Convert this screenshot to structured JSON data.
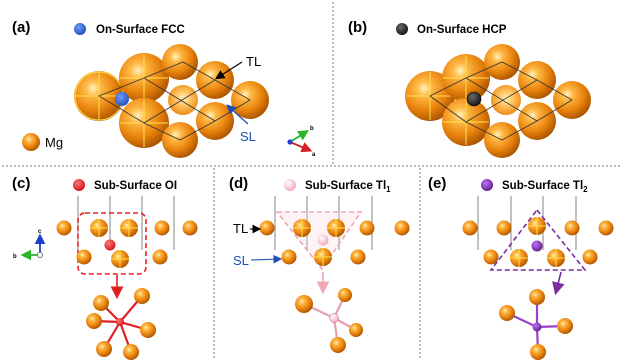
{
  "panels": {
    "a": {
      "label": "(a)",
      "title": "On-Surface FCC",
      "marker_color": "#1f4fb5",
      "tl": "TL",
      "sl": "SL",
      "legend": "Mg",
      "axis_b": "b",
      "axis_a": "a"
    },
    "b": {
      "label": "(b)",
      "title": "On-Surface HCP",
      "marker_color": "#2b2b2b"
    },
    "c": {
      "label": "(c)",
      "title": "Sub-Surface OI",
      "marker_color": "#e8141a",
      "axis_c": "c",
      "axis_b": "b"
    },
    "d": {
      "label": "(d)",
      "title_main": "Sub-Surface Tl",
      "title_sub": "1",
      "marker_color": "#f5b8c4",
      "tl": "TL",
      "sl": "SL"
    },
    "e": {
      "label": "(e)",
      "title_main": "Sub-Surface Tl",
      "title_sub": "2",
      "marker_color": "#7a2ca0"
    }
  },
  "colors": {
    "mg": "#e8830c",
    "sl_arrow": "#1f4fb5",
    "axis_red": "#d62020",
    "axis_green": "#2bb52b",
    "axis_blue": "#1f3fd0",
    "dash_line": "#777777"
  }
}
